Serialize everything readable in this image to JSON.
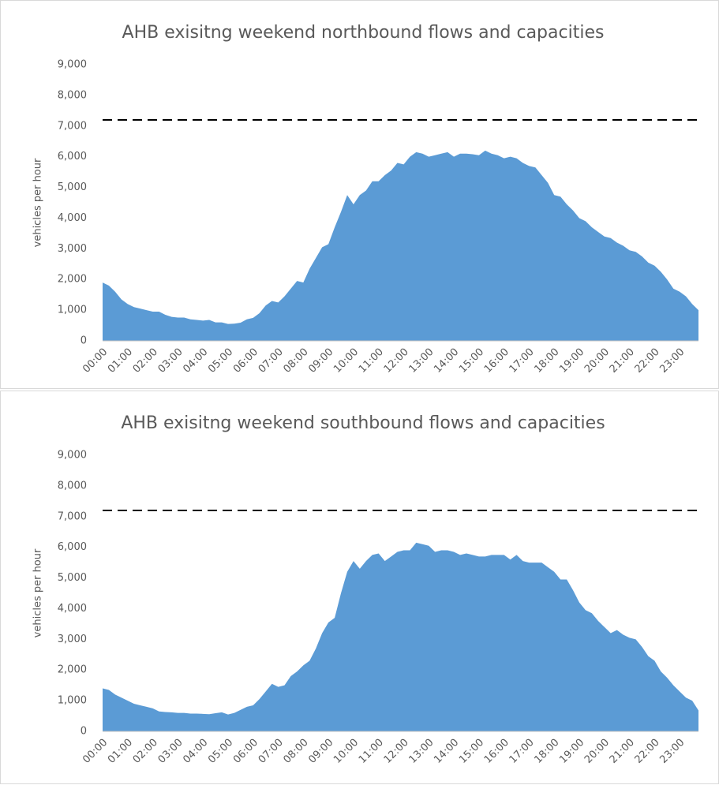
{
  "chart_data": [
    {
      "type": "area",
      "title": "AHB exisitng weekend northbound flows and capacities",
      "y_label": "vehicles per hour",
      "categories": [
        "00:00",
        null,
        null,
        null,
        "01:00",
        null,
        null,
        null,
        "02:00",
        null,
        null,
        null,
        "03:00",
        null,
        null,
        null,
        "04:00",
        null,
        null,
        null,
        "05:00",
        null,
        null,
        null,
        "06:00",
        null,
        null,
        null,
        "07:00",
        null,
        null,
        null,
        "08:00",
        null,
        null,
        null,
        "09:00",
        null,
        null,
        null,
        "10:00",
        null,
        null,
        null,
        "11:00",
        null,
        null,
        null,
        "12:00",
        null,
        null,
        null,
        "13:00",
        null,
        null,
        null,
        "14:00",
        null,
        null,
        null,
        "15:00",
        null,
        null,
        null,
        "16:00",
        null,
        null,
        null,
        "17:00",
        null,
        null,
        null,
        "18:00",
        null,
        null,
        null,
        "19:00",
        null,
        null,
        null,
        "20:00",
        null,
        null,
        null,
        "21:00",
        null,
        null,
        null,
        "22:00",
        null,
        null,
        null,
        "23:00",
        null,
        null,
        null
      ],
      "series": [
        {
          "color": "#5b9bd5",
          "values": [
            1900,
            1800,
            1600,
            1350,
            1200,
            1100,
            1050,
            1000,
            950,
            950,
            850,
            780,
            760,
            760,
            700,
            680,
            660,
            680,
            600,
            600,
            550,
            560,
            590,
            700,
            750,
            900,
            1150,
            1300,
            1250,
            1450,
            1700,
            1950,
            1900,
            2350,
            2700,
            3050,
            3150,
            3700,
            4200,
            4750,
            4450,
            4750,
            4900,
            5200,
            5200,
            5400,
            5550,
            5800,
            5750,
            6000,
            6150,
            6100,
            6000,
            6050,
            6100,
            6150,
            6000,
            6100,
            6100,
            6080,
            6050,
            6200,
            6100,
            6050,
            5950,
            6000,
            5950,
            5800,
            5700,
            5650,
            5400,
            5150,
            4750,
            4700,
            4450,
            4250,
            4000,
            3900,
            3700,
            3550,
            3400,
            3350,
            3200,
            3100,
            2950,
            2900,
            2750,
            2550,
            2450,
            2250,
            2000,
            1700,
            1600,
            1450,
            1200,
            1000
          ]
        }
      ],
      "reference_line": {
        "value": 7200,
        "color": "#000000",
        "dashed": true
      },
      "ylim": [
        0,
        9000
      ],
      "yticks": [
        0,
        {
          "value": 1000,
          "label": "1,000"
        },
        {
          "value": 2000,
          "label": "2,000"
        },
        {
          "value": 3000,
          "label": "3,000"
        },
        {
          "value": 4000,
          "label": "4,000"
        },
        {
          "value": 5000,
          "label": "5,000"
        },
        {
          "value": 6000,
          "label": "6,000"
        },
        {
          "value": 7000,
          "label": "7,000"
        },
        {
          "value": 8000,
          "label": "8,000"
        },
        {
          "value": 9000,
          "label": "9,000"
        }
      ],
      "grid": false
    },
    {
      "type": "area",
      "title": "AHB exisitng weekend southbound flows and capacities",
      "y_label": "vehicles per hour",
      "categories": [
        "00:00",
        null,
        null,
        null,
        "01:00",
        null,
        null,
        null,
        "02:00",
        null,
        null,
        null,
        "03:00",
        null,
        null,
        null,
        "04:00",
        null,
        null,
        null,
        "05:00",
        null,
        null,
        null,
        "06:00",
        null,
        null,
        null,
        "07:00",
        null,
        null,
        null,
        "08:00",
        null,
        null,
        null,
        "09:00",
        null,
        null,
        null,
        "10:00",
        null,
        null,
        null,
        "11:00",
        null,
        null,
        null,
        "12:00",
        null,
        null,
        null,
        "13:00",
        null,
        null,
        null,
        "14:00",
        null,
        null,
        null,
        "15:00",
        null,
        null,
        null,
        "16:00",
        null,
        null,
        null,
        "17:00",
        null,
        null,
        null,
        "18:00",
        null,
        null,
        null,
        "19:00",
        null,
        null,
        null,
        "20:00",
        null,
        null,
        null,
        "21:00",
        null,
        null,
        null,
        "22:00",
        null,
        null,
        null,
        "23:00",
        null,
        null,
        null
      ],
      "series": [
        {
          "color": "#5b9bd5",
          "values": [
            1400,
            1350,
            1200,
            1100,
            1000,
            900,
            850,
            800,
            750,
            650,
            630,
            620,
            600,
            600,
            580,
            580,
            570,
            560,
            590,
            620,
            550,
            600,
            700,
            800,
            850,
            1050,
            1300,
            1550,
            1450,
            1500,
            1800,
            1950,
            2150,
            2300,
            2700,
            3200,
            3550,
            3700,
            4500,
            5200,
            5550,
            5300,
            5550,
            5750,
            5800,
            5550,
            5700,
            5850,
            5900,
            5900,
            6150,
            6100,
            6050,
            5850,
            5900,
            5900,
            5850,
            5750,
            5800,
            5750,
            5700,
            5700,
            5750,
            5750,
            5750,
            5600,
            5750,
            5550,
            5500,
            5500,
            5500,
            5350,
            5200,
            4950,
            4950,
            4600,
            4200,
            3950,
            3850,
            3600,
            3400,
            3200,
            3300,
            3150,
            3050,
            3000,
            2750,
            2450,
            2300,
            1950,
            1750,
            1500,
            1300,
            1100,
            1000,
            680
          ]
        }
      ],
      "reference_line": {
        "value": 7200,
        "color": "#000000",
        "dashed": true
      },
      "ylim": [
        0,
        9000
      ],
      "yticks": [
        0,
        {
          "value": 1000,
          "label": "1,000"
        },
        {
          "value": 2000,
          "label": "2,000"
        },
        {
          "value": 3000,
          "label": "3,000"
        },
        {
          "value": 4000,
          "label": "4,000"
        },
        {
          "value": 5000,
          "label": "5,000"
        },
        {
          "value": 6000,
          "label": "6,000"
        },
        {
          "value": 7000,
          "label": "7,000"
        },
        {
          "value": 8000,
          "label": "8,000"
        },
        {
          "value": 9000,
          "label": "9,000"
        }
      ],
      "grid": false
    }
  ]
}
